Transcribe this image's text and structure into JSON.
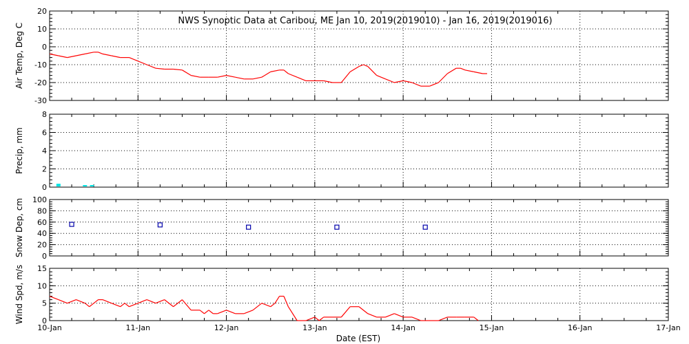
{
  "title": "NWS Synoptic Data at Caribou, ME   Jan 10, 2019(2019010) - Jan 16, 2019(2019016)",
  "xlabel": "Date (EST)",
  "x_ticks": [
    "10-Jan",
    "11-Jan",
    "12-Jan",
    "13-Jan",
    "14-Jan",
    "15-Jan",
    "16-Jan",
    "17-Jan"
  ],
  "colors": {
    "temp": "#ff0000",
    "precip": "#00e5e5",
    "snow": "#0000aa",
    "wind": "#ff0000",
    "grid": "#000000"
  },
  "chart_data": [
    {
      "type": "line",
      "ylabel": "Air Temp, Deg C",
      "ylim": [
        -30,
        20
      ],
      "yticks": [
        "20",
        "10",
        "0",
        "-10",
        "-20",
        "-30"
      ],
      "xlim": [
        0,
        7
      ],
      "x_unit": "days since 10-Jan",
      "series": [
        {
          "x": [
            0,
            0.1,
            0.2,
            0.3,
            0.4,
            0.5,
            0.55,
            0.6,
            0.7,
            0.8,
            0.9,
            1.0,
            1.1,
            1.2,
            1.3,
            1.4,
            1.5,
            1.6,
            1.7,
            1.8,
            1.9,
            2.0,
            2.1,
            2.2,
            2.3,
            2.4,
            2.5,
            2.6,
            2.65,
            2.7,
            2.8,
            2.9,
            3.0,
            3.1,
            3.2,
            3.3,
            3.4,
            3.5,
            3.55,
            3.6,
            3.7,
            3.8,
            3.9,
            4.0,
            4.1,
            4.2,
            4.3,
            4.4,
            4.5,
            4.6,
            4.65,
            4.7,
            4.8,
            4.9,
            4.95
          ],
          "values": [
            -4,
            -5,
            -6,
            -5,
            -4,
            -3,
            -3,
            -4,
            -5,
            -6,
            -6,
            -8,
            -10,
            -12,
            -12.5,
            -12.5,
            -13,
            -16,
            -17,
            -17,
            -17,
            -16,
            -17,
            -18,
            -18,
            -17,
            -14,
            -13,
            -13,
            -15,
            -17,
            -19,
            -19,
            -19,
            -20,
            -20,
            -14,
            -11,
            -10,
            -11,
            -16,
            -18,
            -20,
            -19,
            -20,
            -22,
            -22,
            -20,
            -15,
            -12,
            -12,
            -13,
            -14,
            -15,
            -15
          ]
        }
      ]
    },
    {
      "type": "bar",
      "ylabel": "Precip, mm",
      "ylim": [
        0,
        8
      ],
      "yticks": [
        "8",
        "6",
        "4",
        "2",
        "0"
      ],
      "xlim": [
        0,
        7
      ],
      "x_unit": "days since 10-Jan",
      "series": [
        {
          "x": [
            0.1,
            0.4,
            0.48
          ],
          "values": [
            0.3,
            0.05,
            0.05
          ]
        }
      ]
    },
    {
      "type": "scatter",
      "ylabel": "Snow Dep, cm",
      "ylim": [
        0,
        100
      ],
      "yticks": [
        "100",
        "80",
        "60",
        "40",
        "20",
        "0"
      ],
      "xlim": [
        0,
        7
      ],
      "x_unit": "days since 10-Jan",
      "series": [
        {
          "x": [
            0.25,
            1.25,
            2.25,
            3.25,
            4.25
          ],
          "values": [
            56,
            55,
            51,
            51,
            51
          ]
        }
      ]
    },
    {
      "type": "line",
      "ylabel": "Wind Spd, m/s",
      "ylim": [
        0,
        15
      ],
      "yticks": [
        "15",
        "10",
        "5",
        "0"
      ],
      "xlim": [
        0,
        7
      ],
      "x_unit": "days since 10-Jan",
      "series": [
        {
          "x": [
            0,
            0.1,
            0.2,
            0.3,
            0.4,
            0.45,
            0.5,
            0.55,
            0.6,
            0.7,
            0.8,
            0.85,
            0.9,
            1.0,
            1.1,
            1.2,
            1.3,
            1.4,
            1.5,
            1.6,
            1.7,
            1.75,
            1.8,
            1.85,
            1.9,
            2.0,
            2.1,
            2.2,
            2.3,
            2.4,
            2.5,
            2.55,
            2.6,
            2.65,
            2.7,
            2.8,
            2.9,
            3.0,
            3.05,
            3.1,
            3.2,
            3.3,
            3.4,
            3.5,
            3.6,
            3.7,
            3.8,
            3.9,
            4.0,
            4.1,
            4.2,
            4.3,
            4.4,
            4.5,
            4.6,
            4.7,
            4.8,
            4.85
          ],
          "values": [
            7,
            6,
            5,
            6,
            5,
            4,
            5,
            6,
            6,
            5,
            4,
            5,
            4,
            5,
            6,
            5,
            6,
            4,
            6,
            3,
            3,
            2,
            3,
            2,
            2,
            3,
            2,
            2,
            3,
            5,
            4,
            5,
            7,
            7,
            4,
            0,
            0,
            1,
            0,
            1,
            1,
            1,
            4,
            4,
            2,
            1,
            1,
            2,
            1,
            1,
            0,
            0,
            0,
            1,
            1,
            1,
            1,
            0
          ]
        }
      ]
    }
  ]
}
